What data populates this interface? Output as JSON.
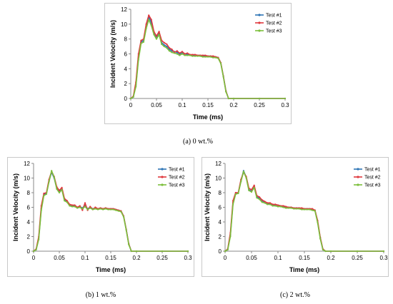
{
  "captions": [
    "(a) 0 wt.%",
    "(b) 1 wt.%",
    "(c) 2 wt.%"
  ],
  "series_colors": [
    "#2e75b6",
    "#e0393e",
    "#7cbf3c"
  ],
  "chart_data": [
    {
      "type": "line",
      "xlabel": "Time (ms)",
      "ylabel": "Incident Velocity (m/s)",
      "xlim": [
        0,
        0.3
      ],
      "ylim": [
        0,
        12
      ],
      "xticks": [
        "0",
        "0.05",
        "0.1",
        "0.15",
        "0.2",
        "0.25",
        "0.3"
      ],
      "yticks": [
        "0",
        "2",
        "4",
        "6",
        "8",
        "10",
        "12"
      ],
      "legend_position": "top-right",
      "grid": false,
      "series": [
        {
          "name": "Test #1",
          "x": [
            0,
            0.005,
            0.01,
            0.015,
            0.02,
            0.025,
            0.03,
            0.035,
            0.04,
            0.045,
            0.05,
            0.055,
            0.06,
            0.065,
            0.07,
            0.075,
            0.08,
            0.085,
            0.09,
            0.095,
            0.1,
            0.105,
            0.11,
            0.115,
            0.12,
            0.125,
            0.13,
            0.135,
            0.14,
            0.145,
            0.15,
            0.155,
            0.16,
            0.165,
            0.17,
            0.175,
            0.18,
            0.185,
            0.19,
            0.2,
            0.25,
            0.3
          ],
          "y": [
            0,
            0.2,
            1.8,
            5.5,
            7.6,
            7.8,
            9.6,
            11.0,
            10.2,
            8.8,
            8.2,
            8.8,
            7.5,
            7.2,
            7.0,
            6.6,
            6.4,
            6.3,
            6.2,
            6.0,
            6.1,
            6.0,
            5.9,
            5.9,
            5.8,
            5.8,
            5.8,
            5.8,
            5.7,
            5.7,
            5.7,
            5.7,
            5.6,
            5.6,
            5.5,
            4.8,
            3.0,
            1.0,
            0,
            0,
            0,
            0
          ]
        },
        {
          "name": "Test #2",
          "x": [
            0,
            0.005,
            0.01,
            0.015,
            0.02,
            0.025,
            0.03,
            0.035,
            0.04,
            0.045,
            0.05,
            0.055,
            0.06,
            0.065,
            0.07,
            0.075,
            0.08,
            0.085,
            0.09,
            0.095,
            0.1,
            0.105,
            0.11,
            0.115,
            0.12,
            0.125,
            0.13,
            0.135,
            0.14,
            0.145,
            0.15,
            0.155,
            0.16,
            0.165,
            0.17,
            0.175,
            0.18,
            0.185,
            0.19,
            0.2,
            0.25,
            0.3
          ],
          "y": [
            0,
            0.3,
            2.2,
            6.0,
            7.8,
            8.0,
            10.0,
            11.2,
            10.6,
            9.0,
            8.4,
            9.0,
            7.8,
            7.5,
            7.3,
            6.8,
            6.6,
            6.2,
            6.4,
            6.1,
            6.3,
            6.0,
            6.1,
            5.9,
            5.9,
            5.9,
            5.8,
            5.8,
            5.8,
            5.8,
            5.7,
            5.7,
            5.7,
            5.6,
            5.5,
            4.8,
            3.0,
            1.0,
            0,
            0,
            0,
            0
          ]
        },
        {
          "name": "Test #3",
          "x": [
            0,
            0.005,
            0.01,
            0.015,
            0.02,
            0.025,
            0.03,
            0.035,
            0.04,
            0.045,
            0.05,
            0.055,
            0.06,
            0.065,
            0.07,
            0.075,
            0.08,
            0.085,
            0.09,
            0.095,
            0.1,
            0.105,
            0.11,
            0.115,
            0.12,
            0.125,
            0.13,
            0.135,
            0.14,
            0.145,
            0.15,
            0.155,
            0.16,
            0.165,
            0.17,
            0.175,
            0.18,
            0.185,
            0.19,
            0.2,
            0.25,
            0.3
          ],
          "y": [
            0,
            0.2,
            1.6,
            5.2,
            7.4,
            7.6,
            9.4,
            10.6,
            9.8,
            8.6,
            8.0,
            8.6,
            7.3,
            7.0,
            6.8,
            6.4,
            6.2,
            6.1,
            6.0,
            5.8,
            6.0,
            5.8,
            5.8,
            5.8,
            5.7,
            5.7,
            5.7,
            5.7,
            5.6,
            5.6,
            5.6,
            5.6,
            5.5,
            5.5,
            5.4,
            4.7,
            2.9,
            0.9,
            0,
            0,
            0,
            0
          ]
        }
      ]
    },
    {
      "type": "line",
      "xlabel": "Time (ms)",
      "ylabel": "Incident Velocity (m/s)",
      "xlim": [
        0,
        0.3
      ],
      "ylim": [
        0,
        12
      ],
      "xticks": [
        "0",
        "0.05",
        "0.1",
        "0.15",
        "0.2",
        "0.25",
        "0.3"
      ],
      "yticks": [
        "0",
        "2",
        "4",
        "6",
        "8",
        "10",
        "12"
      ],
      "legend_position": "top-right",
      "grid": false,
      "series": [
        {
          "name": "Test #1",
          "x": [
            0,
            0.005,
            0.01,
            0.015,
            0.02,
            0.025,
            0.03,
            0.035,
            0.04,
            0.045,
            0.05,
            0.055,
            0.06,
            0.065,
            0.07,
            0.075,
            0.08,
            0.085,
            0.09,
            0.095,
            0.1,
            0.105,
            0.11,
            0.115,
            0.12,
            0.125,
            0.13,
            0.135,
            0.14,
            0.145,
            0.15,
            0.155,
            0.16,
            0.165,
            0.17,
            0.175,
            0.18,
            0.185,
            0.19,
            0.2,
            0.25,
            0.3
          ],
          "y": [
            0,
            0.2,
            1.8,
            5.8,
            7.8,
            7.9,
            9.6,
            10.8,
            10.0,
            8.6,
            8.1,
            8.5,
            7.0,
            6.8,
            6.3,
            6.2,
            6.2,
            6.0,
            6.1,
            5.9,
            6.3,
            5.8,
            6.0,
            5.8,
            5.9,
            5.8,
            5.9,
            5.8,
            5.9,
            5.8,
            5.8,
            5.8,
            5.7,
            5.6,
            5.5,
            4.8,
            3.0,
            1.0,
            0,
            0,
            0,
            0
          ]
        },
        {
          "name": "Test #2",
          "x": [
            0,
            0.005,
            0.01,
            0.015,
            0.02,
            0.025,
            0.03,
            0.035,
            0.04,
            0.045,
            0.05,
            0.055,
            0.06,
            0.065,
            0.07,
            0.075,
            0.08,
            0.085,
            0.09,
            0.095,
            0.1,
            0.105,
            0.11,
            0.115,
            0.12,
            0.125,
            0.13,
            0.135,
            0.14,
            0.145,
            0.15,
            0.155,
            0.16,
            0.165,
            0.17,
            0.175,
            0.18,
            0.185,
            0.19,
            0.2,
            0.25,
            0.3
          ],
          "y": [
            0,
            0.3,
            2.0,
            6.2,
            7.9,
            8.0,
            9.8,
            10.9,
            10.2,
            8.8,
            8.3,
            8.7,
            7.2,
            6.9,
            6.4,
            6.3,
            6.3,
            6.0,
            6.2,
            5.6,
            6.6,
            5.6,
            6.1,
            5.7,
            6.0,
            5.8,
            5.9,
            5.8,
            5.9,
            5.8,
            5.8,
            5.8,
            5.7,
            5.6,
            5.5,
            4.8,
            3.0,
            1.0,
            0,
            0,
            0,
            0
          ]
        },
        {
          "name": "Test #3",
          "x": [
            0,
            0.005,
            0.01,
            0.015,
            0.02,
            0.025,
            0.03,
            0.035,
            0.04,
            0.045,
            0.05,
            0.055,
            0.06,
            0.065,
            0.07,
            0.075,
            0.08,
            0.085,
            0.09,
            0.095,
            0.1,
            0.105,
            0.11,
            0.115,
            0.12,
            0.125,
            0.13,
            0.135,
            0.14,
            0.145,
            0.15,
            0.155,
            0.16,
            0.165,
            0.17,
            0.175,
            0.18,
            0.185,
            0.19,
            0.2,
            0.25,
            0.3
          ],
          "y": [
            0,
            0.2,
            1.6,
            5.6,
            7.6,
            7.8,
            9.5,
            11.0,
            10.1,
            8.5,
            8.0,
            8.4,
            6.9,
            6.7,
            6.2,
            6.1,
            6.1,
            5.9,
            6.0,
            5.8,
            6.1,
            5.7,
            5.9,
            5.7,
            5.8,
            5.7,
            5.8,
            5.7,
            5.8,
            5.7,
            5.7,
            5.7,
            5.6,
            5.5,
            5.4,
            4.7,
            2.9,
            0.9,
            0,
            0,
            0,
            0
          ]
        }
      ]
    },
    {
      "type": "line",
      "xlabel": "Time (ms)",
      "ylabel": "Incident Velocity (m/s)",
      "xlim": [
        0,
        0.3
      ],
      "ylim": [
        0,
        12
      ],
      "xticks": [
        "0",
        "0.05",
        "0.1",
        "0.15",
        "0.2",
        "0.25",
        "0.3"
      ],
      "yticks": [
        "0",
        "2",
        "4",
        "6",
        "8",
        "10",
        "12"
      ],
      "legend_position": "top-right",
      "grid": false,
      "series": [
        {
          "name": "Test #1",
          "x": [
            0,
            0.005,
            0.01,
            0.015,
            0.02,
            0.025,
            0.03,
            0.035,
            0.04,
            0.045,
            0.05,
            0.055,
            0.06,
            0.065,
            0.07,
            0.075,
            0.08,
            0.085,
            0.09,
            0.095,
            0.1,
            0.105,
            0.11,
            0.115,
            0.12,
            0.125,
            0.13,
            0.135,
            0.14,
            0.145,
            0.15,
            0.155,
            0.16,
            0.165,
            0.17,
            0.175,
            0.18,
            0.185,
            0.19,
            0.2,
            0.25,
            0.3
          ],
          "y": [
            0,
            0.2,
            2.2,
            6.6,
            7.9,
            8.0,
            9.6,
            11.0,
            10.1,
            8.4,
            8.2,
            8.9,
            7.4,
            7.3,
            6.9,
            6.7,
            6.5,
            6.5,
            6.3,
            6.3,
            6.3,
            6.2,
            6.1,
            6.0,
            6.0,
            6.0,
            5.9,
            5.9,
            5.9,
            5.8,
            5.8,
            5.8,
            5.8,
            5.7,
            5.6,
            4.0,
            1.8,
            0.2,
            0,
            0,
            0,
            0
          ]
        },
        {
          "name": "Test #2",
          "x": [
            0,
            0.005,
            0.01,
            0.015,
            0.02,
            0.025,
            0.03,
            0.035,
            0.04,
            0.045,
            0.05,
            0.055,
            0.06,
            0.065,
            0.07,
            0.075,
            0.08,
            0.085,
            0.09,
            0.095,
            0.1,
            0.105,
            0.11,
            0.115,
            0.12,
            0.125,
            0.13,
            0.135,
            0.14,
            0.145,
            0.15,
            0.155,
            0.16,
            0.165,
            0.17,
            0.175,
            0.18,
            0.185,
            0.19,
            0.2,
            0.25,
            0.3
          ],
          "y": [
            0,
            0.3,
            2.5,
            6.9,
            8.0,
            8.0,
            9.8,
            10.8,
            10.2,
            8.6,
            8.4,
            9.0,
            7.6,
            7.4,
            7.0,
            6.8,
            6.6,
            6.6,
            6.4,
            6.4,
            6.3,
            6.2,
            6.2,
            6.1,
            6.0,
            6.0,
            5.9,
            5.9,
            5.9,
            5.9,
            5.8,
            5.8,
            5.8,
            5.8,
            5.6,
            4.2,
            1.9,
            0.3,
            0,
            0,
            0,
            0
          ]
        },
        {
          "name": "Test #3",
          "x": [
            0,
            0.005,
            0.01,
            0.015,
            0.02,
            0.025,
            0.03,
            0.035,
            0.04,
            0.045,
            0.05,
            0.055,
            0.06,
            0.065,
            0.07,
            0.075,
            0.08,
            0.085,
            0.09,
            0.095,
            0.1,
            0.105,
            0.11,
            0.115,
            0.12,
            0.125,
            0.13,
            0.135,
            0.14,
            0.145,
            0.15,
            0.155,
            0.16,
            0.165,
            0.17,
            0.175,
            0.18,
            0.185,
            0.19,
            0.2,
            0.25,
            0.3
          ],
          "y": [
            0,
            0.2,
            2.0,
            6.4,
            7.8,
            7.9,
            9.5,
            10.9,
            10.0,
            8.3,
            8.1,
            8.7,
            7.3,
            7.1,
            6.7,
            6.6,
            6.4,
            6.4,
            6.2,
            6.2,
            6.1,
            6.1,
            6.0,
            5.9,
            5.9,
            5.9,
            5.8,
            5.8,
            5.8,
            5.7,
            5.7,
            5.7,
            5.7,
            5.6,
            5.5,
            3.9,
            1.7,
            0.2,
            0,
            0,
            0,
            0
          ]
        }
      ]
    }
  ]
}
